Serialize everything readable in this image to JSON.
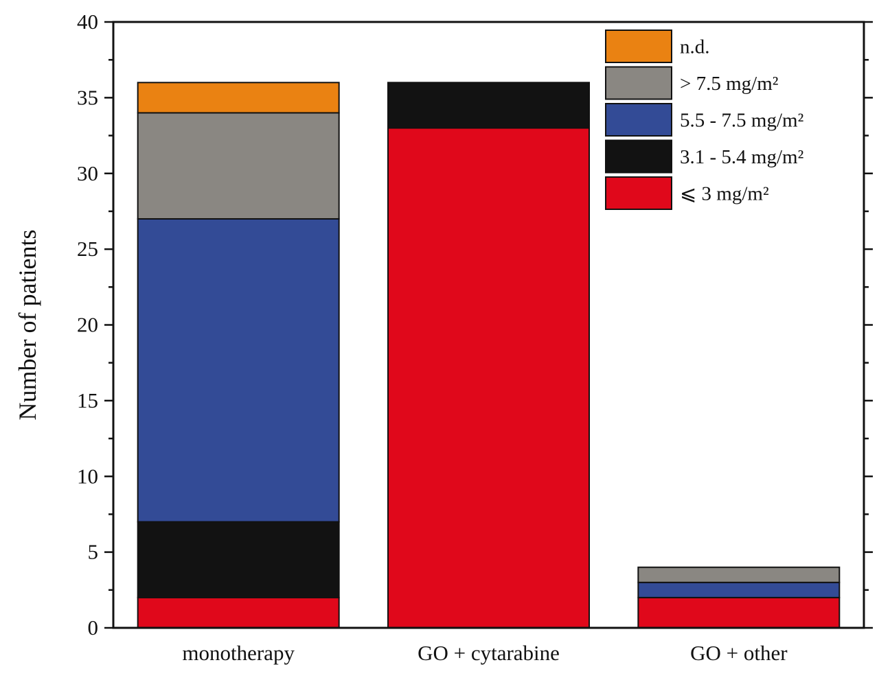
{
  "chart_data": {
    "type": "bar",
    "stacked": true,
    "title": "",
    "xlabel": "",
    "ylabel": "Number of patients",
    "ylim": [
      0,
      40
    ],
    "yticks": [
      0,
      5,
      10,
      15,
      20,
      25,
      30,
      35,
      40
    ],
    "categories": [
      "monotherapy",
      "GO + cytarabine",
      "GO + other"
    ],
    "series": [
      {
        "name": "⩽ 3 mg/m²",
        "color": "#e0081b",
        "values": [
          2,
          33,
          2
        ]
      },
      {
        "name": "3.1 - 5.4 mg/m²",
        "color": "#121212",
        "values": [
          5,
          3,
          0
        ]
      },
      {
        "name": "5.5 - 7.5 mg/m²",
        "color": "#334b96",
        "values": [
          20,
          0,
          1
        ]
      },
      {
        "name": "> 7.5 mg/m²",
        "color": "#8a8782",
        "values": [
          7,
          0,
          1
        ]
      },
      {
        "name": "n.d.",
        "color": "#ea8212",
        "values": [
          2,
          0,
          0
        ]
      }
    ],
    "legend_order": [
      "n.d.",
      "> 7.5 mg/m²",
      "5.5 - 7.5 mg/m²",
      "3.1 - 5.4 mg/m²",
      "⩽ 3 mg/m²"
    ],
    "legend_position": "top-right",
    "grid": false
  }
}
